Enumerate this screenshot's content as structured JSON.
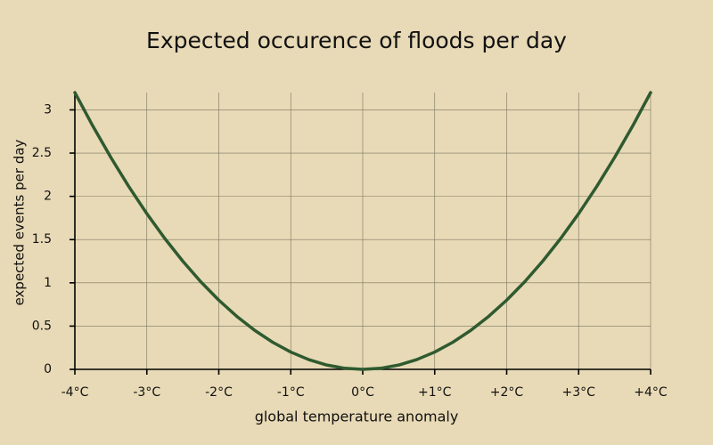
{
  "chart_data": {
    "type": "line",
    "title": "Expected occurence of floods per day",
    "xlabel": "global temperature anomaly",
    "ylabel": "expected events per day",
    "x": [
      -4,
      -3.75,
      -3.5,
      -3.25,
      -3,
      -2.75,
      -2.5,
      -2.25,
      -2,
      -1.75,
      -1.5,
      -1.25,
      -1,
      -0.75,
      -0.5,
      -0.25,
      0,
      0.25,
      0.5,
      0.75,
      1,
      1.25,
      1.5,
      1.75,
      2,
      2.25,
      2.5,
      2.75,
      3,
      3.25,
      3.5,
      3.75,
      4
    ],
    "series": [
      {
        "name": "expected events",
        "color": "#2f5a30",
        "values": [
          3.2,
          2.8125,
          2.45,
          2.1125,
          1.8,
          1.5125,
          1.25,
          1.0125,
          0.8,
          0.6125,
          0.45,
          0.3125,
          0.2,
          0.1125,
          0.05,
          0.0125,
          0,
          0.0125,
          0.05,
          0.1125,
          0.2,
          0.3125,
          0.45,
          0.6125,
          0.8,
          1.0125,
          1.25,
          1.5125,
          1.8,
          2.1125,
          2.45,
          2.8125,
          3.2
        ]
      }
    ],
    "xlim": [
      -4,
      4
    ],
    "xticks": [
      {
        "value": -4,
        "label": "-4°C"
      },
      {
        "value": -3,
        "label": "-3°C"
      },
      {
        "value": -2,
        "label": "-2°C"
      },
      {
        "value": -1,
        "label": "-1°C"
      },
      {
        "value": 0,
        "label": "0°C"
      },
      {
        "value": 1,
        "label": "+1°C"
      },
      {
        "value": 2,
        "label": "+2°C"
      },
      {
        "value": 3,
        "label": "+3°C"
      },
      {
        "value": 4,
        "label": "+4°C"
      }
    ],
    "ylim": [
      0,
      3.2
    ],
    "yticks": [
      0,
      0.5,
      1,
      1.5,
      2,
      2.5,
      3
    ],
    "grid": true
  }
}
